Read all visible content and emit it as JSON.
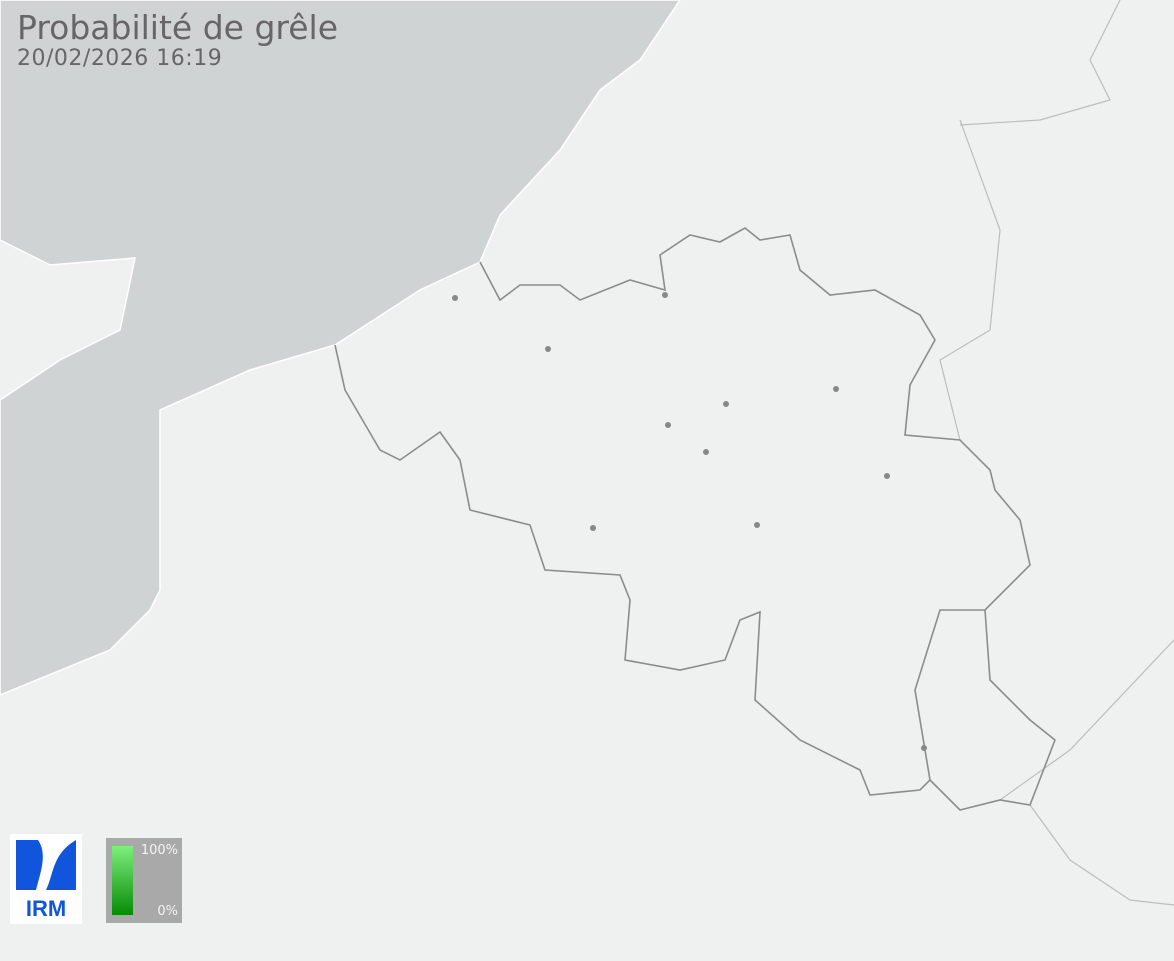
{
  "header": {
    "title": "Probabilité de grêle",
    "timestamp": "20/02/2026 16:19"
  },
  "logo": {
    "text": "IRM",
    "color": "#1155dd"
  },
  "legend": {
    "max_label": "100%",
    "min_label": "0%",
    "color_high": "#7cf07c",
    "color_low": "#078a07"
  },
  "map": {
    "sea_color": "#d0d3d4",
    "land_color": "#eff0f0",
    "border_color": "#8c8c8c",
    "city_marker_color": "#888888",
    "city_count": 11,
    "hail_probability_shown": "none"
  }
}
